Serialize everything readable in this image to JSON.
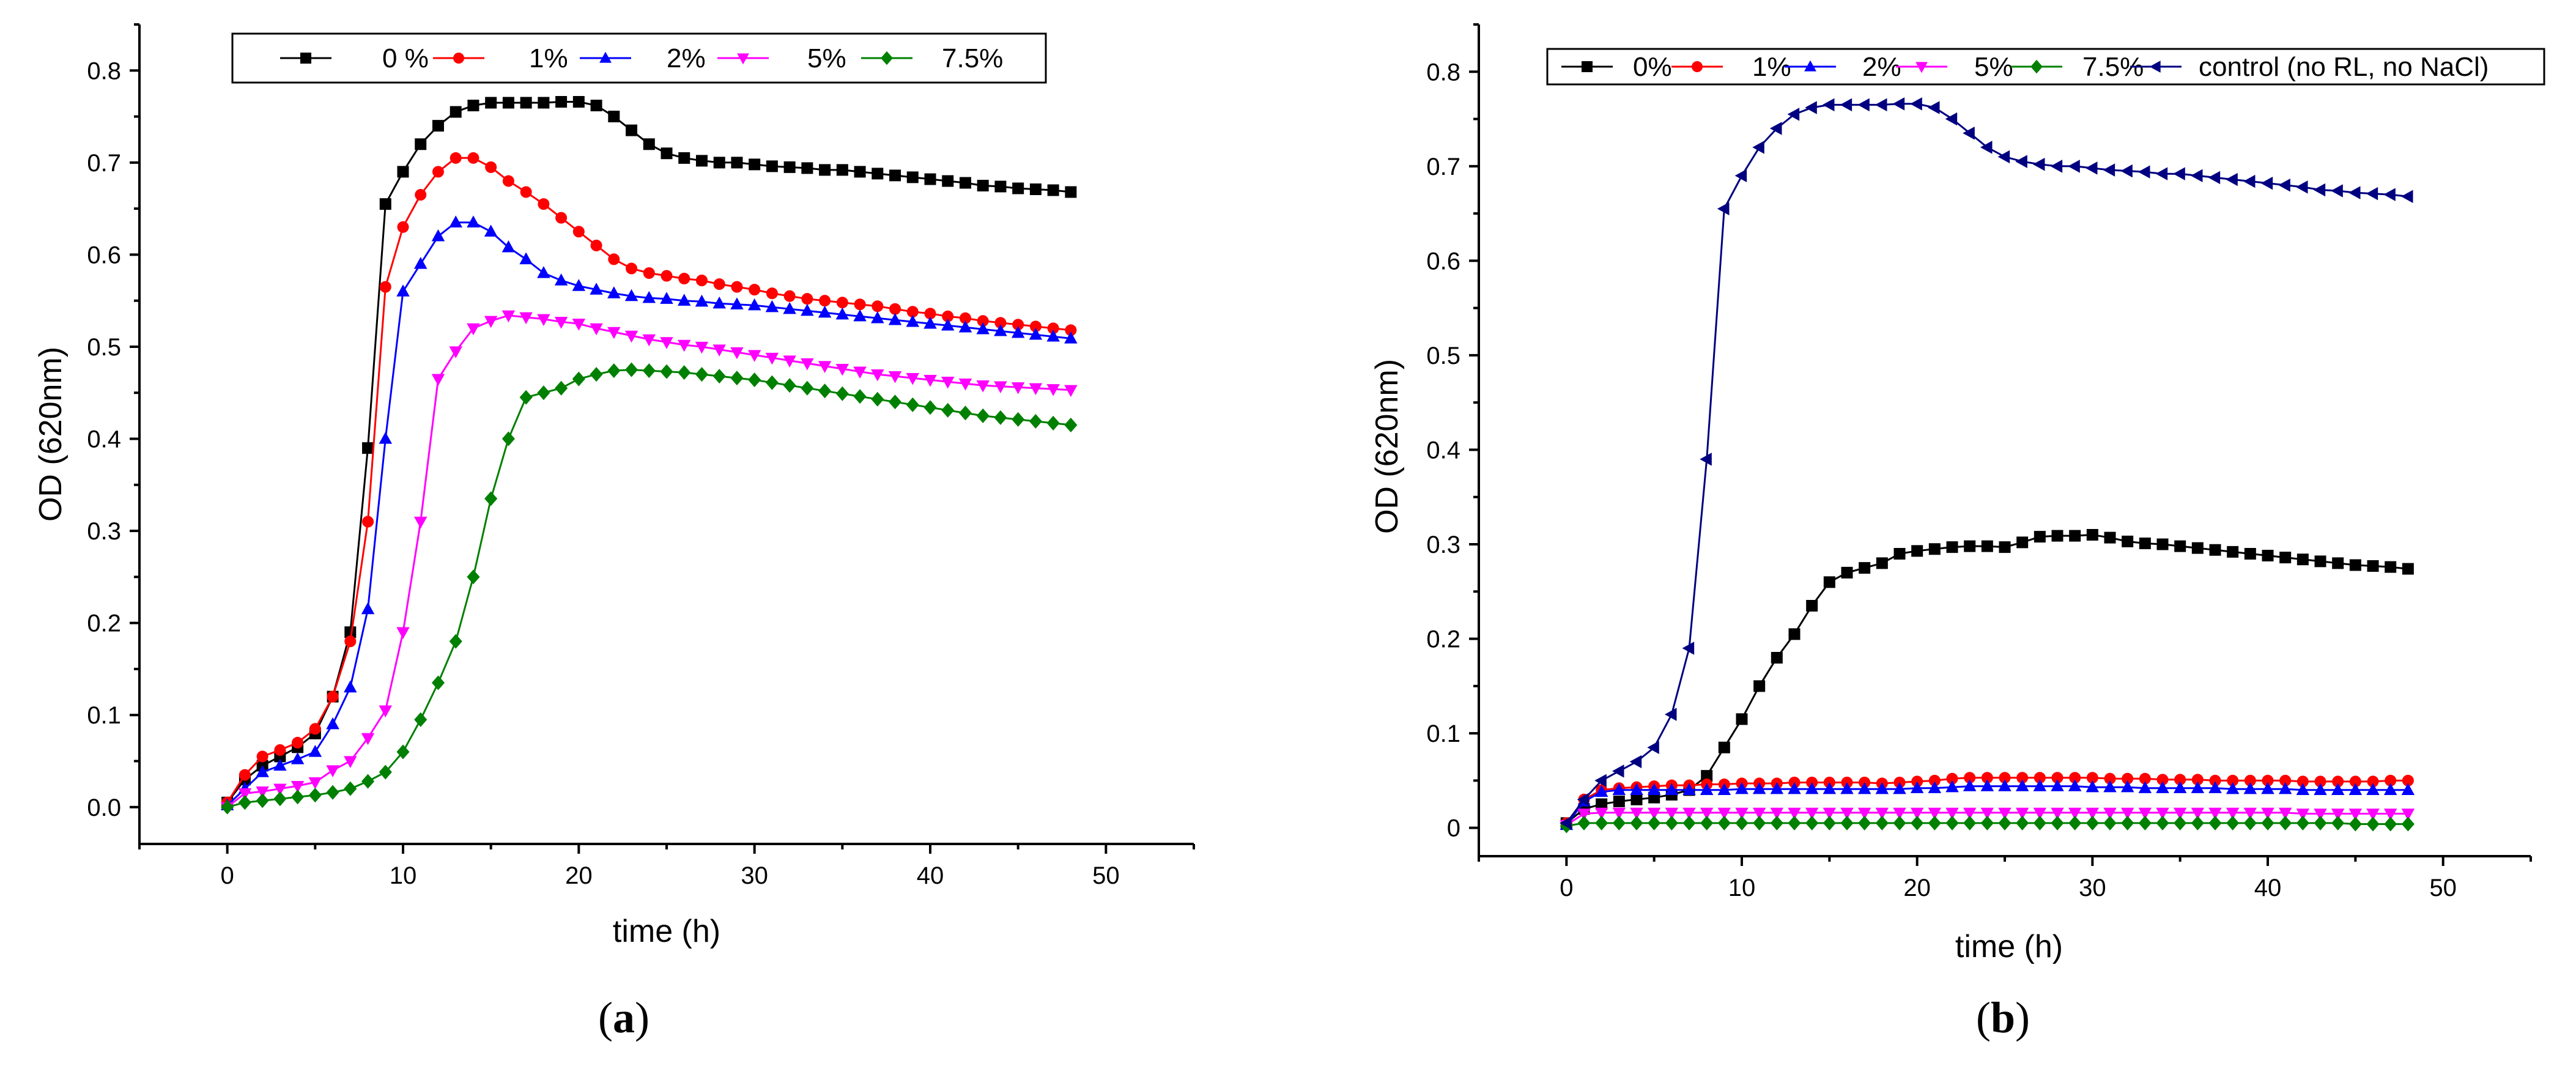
{
  "chart_data": [
    {
      "type": "line",
      "panel_label": "a",
      "xlabel": "time (h)",
      "ylabel": "OD (620nm)",
      "xlim": [
        -5,
        55
      ],
      "ylim": [
        -0.04,
        0.85
      ],
      "xticks": [
        "0",
        "10",
        "20",
        "30",
        "40",
        "50"
      ],
      "xtick_values": [
        0,
        10,
        20,
        30,
        40,
        50
      ],
      "yticks": [
        "0.0",
        "0.1",
        "0.2",
        "0.3",
        "0.4",
        "0.5",
        "0.6",
        "0.7",
        "0.8"
      ],
      "ytick_values": [
        0,
        0.1,
        0.2,
        0.3,
        0.4,
        0.5,
        0.6,
        0.7,
        0.8
      ],
      "legend_position": "top",
      "x": [
        0,
        1,
        2,
        3,
        4,
        5,
        6,
        7,
        8,
        9,
        10,
        11,
        12,
        13,
        14,
        15,
        16,
        17,
        18,
        19,
        20,
        21,
        22,
        23,
        24,
        25,
        26,
        27,
        28,
        29,
        30,
        31,
        32,
        33,
        34,
        35,
        36,
        37,
        38,
        39,
        40,
        41,
        42,
        43,
        44,
        45,
        46,
        47,
        48
      ],
      "series": [
        {
          "name": "0 %",
          "color": "#000000",
          "marker": "square",
          "values": [
            0.005,
            0.03,
            0.045,
            0.055,
            0.065,
            0.08,
            0.12,
            0.19,
            0.39,
            0.655,
            0.69,
            0.72,
            0.74,
            0.755,
            0.762,
            0.765,
            0.765,
            0.765,
            0.765,
            0.766,
            0.766,
            0.762,
            0.75,
            0.735,
            0.72,
            0.71,
            0.705,
            0.702,
            0.7,
            0.7,
            0.698,
            0.696,
            0.695,
            0.694,
            0.692,
            0.692,
            0.69,
            0.688,
            0.686,
            0.684,
            0.682,
            0.68,
            0.678,
            0.675,
            0.674,
            0.672,
            0.671,
            0.67,
            0.668
          ]
        },
        {
          "name": "1%",
          "color": "#ff0000",
          "marker": "circle",
          "values": [
            0.005,
            0.035,
            0.055,
            0.062,
            0.07,
            0.085,
            0.12,
            0.18,
            0.31,
            0.565,
            0.63,
            0.665,
            0.69,
            0.705,
            0.705,
            0.695,
            0.68,
            0.668,
            0.655,
            0.64,
            0.625,
            0.61,
            0.595,
            0.585,
            0.58,
            0.577,
            0.574,
            0.572,
            0.568,
            0.565,
            0.562,
            0.558,
            0.555,
            0.552,
            0.55,
            0.548,
            0.546,
            0.544,
            0.541,
            0.538,
            0.536,
            0.533,
            0.531,
            0.528,
            0.526,
            0.524,
            0.522,
            0.52,
            0.518
          ]
        },
        {
          "name": "2%",
          "color": "#0000ff",
          "marker": "triangle-up",
          "values": [
            0.002,
            0.02,
            0.038,
            0.045,
            0.052,
            0.06,
            0.09,
            0.13,
            0.215,
            0.4,
            0.56,
            0.59,
            0.62,
            0.635,
            0.635,
            0.625,
            0.608,
            0.595,
            0.58,
            0.572,
            0.566,
            0.562,
            0.558,
            0.555,
            0.553,
            0.552,
            0.55,
            0.549,
            0.547,
            0.546,
            0.545,
            0.543,
            0.541,
            0.539,
            0.537,
            0.535,
            0.533,
            0.531,
            0.529,
            0.527,
            0.525,
            0.523,
            0.521,
            0.519,
            0.517,
            0.515,
            0.513,
            0.511,
            0.509
          ]
        },
        {
          "name": "5%",
          "color": "#ff00ff",
          "marker": "triangle-down",
          "values": [
            0.0,
            0.015,
            0.017,
            0.02,
            0.023,
            0.027,
            0.04,
            0.05,
            0.075,
            0.105,
            0.19,
            0.31,
            0.465,
            0.495,
            0.52,
            0.528,
            0.534,
            0.532,
            0.53,
            0.527,
            0.525,
            0.52,
            0.516,
            0.512,
            0.508,
            0.505,
            0.502,
            0.5,
            0.497,
            0.494,
            0.491,
            0.488,
            0.485,
            0.482,
            0.479,
            0.476,
            0.473,
            0.47,
            0.468,
            0.466,
            0.464,
            0.462,
            0.46,
            0.458,
            0.457,
            0.456,
            0.455,
            0.454,
            0.453
          ]
        },
        {
          "name": "7.5%",
          "color": "#008000",
          "marker": "diamond",
          "values": [
            0.0,
            0.005,
            0.007,
            0.009,
            0.011,
            0.013,
            0.016,
            0.02,
            0.028,
            0.038,
            0.06,
            0.095,
            0.135,
            0.18,
            0.25,
            0.335,
            0.4,
            0.445,
            0.45,
            0.455,
            0.465,
            0.47,
            0.474,
            0.475,
            0.474,
            0.473,
            0.472,
            0.47,
            0.468,
            0.466,
            0.464,
            0.461,
            0.458,
            0.455,
            0.452,
            0.449,
            0.446,
            0.443,
            0.44,
            0.437,
            0.434,
            0.431,
            0.428,
            0.425,
            0.423,
            0.421,
            0.419,
            0.417,
            0.415
          ]
        }
      ]
    },
    {
      "type": "line",
      "panel_label": "b",
      "xlabel": "time (h)",
      "ylabel": "OD (620nm)",
      "xlim": [
        -5,
        55
      ],
      "ylim": [
        -0.03,
        0.85
      ],
      "xticks": [
        "0",
        "10",
        "20",
        "30",
        "40",
        "50"
      ],
      "xtick_values": [
        0,
        10,
        20,
        30,
        40,
        50
      ],
      "yticks": [
        "0",
        "0.1",
        "0.2",
        "0.3",
        "0.4",
        "0.5",
        "0.6",
        "0.7",
        "0.8"
      ],
      "ytick_values": [
        0,
        0.1,
        0.2,
        0.3,
        0.4,
        0.5,
        0.6,
        0.7,
        0.8
      ],
      "legend_position": "top",
      "x": [
        0,
        1,
        2,
        3,
        4,
        5,
        6,
        7,
        8,
        9,
        10,
        11,
        12,
        13,
        14,
        15,
        16,
        17,
        18,
        19,
        20,
        21,
        22,
        23,
        24,
        25,
        26,
        27,
        28,
        29,
        30,
        31,
        32,
        33,
        34,
        35,
        36,
        37,
        38,
        39,
        40,
        41,
        42,
        43,
        44,
        45,
        46,
        47,
        48
      ],
      "series": [
        {
          "name": "0%",
          "color": "#000000",
          "marker": "square",
          "values": [
            0.005,
            0.02,
            0.025,
            0.028,
            0.03,
            0.032,
            0.035,
            0.04,
            0.055,
            0.085,
            0.115,
            0.15,
            0.18,
            0.205,
            0.235,
            0.26,
            0.27,
            0.275,
            0.28,
            0.29,
            0.293,
            0.295,
            0.297,
            0.298,
            0.298,
            0.297,
            0.302,
            0.308,
            0.309,
            0.309,
            0.31,
            0.307,
            0.303,
            0.301,
            0.3,
            0.298,
            0.296,
            0.294,
            0.292,
            0.29,
            0.288,
            0.286,
            0.284,
            0.282,
            0.28,
            0.278,
            0.277,
            0.276,
            0.274
          ]
        },
        {
          "name": "1%",
          "color": "#ff0000",
          "marker": "circle",
          "values": [
            0.005,
            0.03,
            0.04,
            0.042,
            0.043,
            0.044,
            0.045,
            0.045,
            0.046,
            0.046,
            0.047,
            0.047,
            0.047,
            0.048,
            0.048,
            0.048,
            0.048,
            0.048,
            0.047,
            0.048,
            0.049,
            0.05,
            0.052,
            0.053,
            0.053,
            0.053,
            0.053,
            0.053,
            0.053,
            0.053,
            0.053,
            0.052,
            0.052,
            0.052,
            0.051,
            0.051,
            0.051,
            0.05,
            0.05,
            0.05,
            0.05,
            0.05,
            0.049,
            0.049,
            0.049,
            0.049,
            0.049,
            0.05,
            0.05
          ]
        },
        {
          "name": "2%",
          "color": "#0000ff",
          "marker": "triangle-up",
          "values": [
            0.003,
            0.028,
            0.038,
            0.04,
            0.04,
            0.04,
            0.04,
            0.04,
            0.04,
            0.04,
            0.041,
            0.041,
            0.041,
            0.041,
            0.041,
            0.041,
            0.041,
            0.041,
            0.041,
            0.041,
            0.042,
            0.042,
            0.043,
            0.044,
            0.044,
            0.044,
            0.044,
            0.044,
            0.044,
            0.044,
            0.043,
            0.043,
            0.043,
            0.042,
            0.042,
            0.042,
            0.042,
            0.042,
            0.041,
            0.041,
            0.041,
            0.041,
            0.04,
            0.04,
            0.04,
            0.04,
            0.04,
            0.04,
            0.04
          ]
        },
        {
          "name": "5%",
          "color": "#ff00ff",
          "marker": "triangle-down",
          "values": [
            0.003,
            0.015,
            0.016,
            0.016,
            0.016,
            0.016,
            0.016,
            0.016,
            0.016,
            0.016,
            0.016,
            0.016,
            0.016,
            0.016,
            0.016,
            0.016,
            0.016,
            0.016,
            0.016,
            0.016,
            0.016,
            0.016,
            0.016,
            0.016,
            0.016,
            0.016,
            0.016,
            0.016,
            0.016,
            0.016,
            0.016,
            0.016,
            0.016,
            0.016,
            0.016,
            0.016,
            0.016,
            0.016,
            0.016,
            0.016,
            0.016,
            0.016,
            0.015,
            0.015,
            0.015,
            0.015,
            0.015,
            0.015,
            0.015
          ]
        },
        {
          "name": "7.5%",
          "color": "#008000",
          "marker": "diamond",
          "values": [
            0.002,
            0.005,
            0.005,
            0.005,
            0.005,
            0.005,
            0.005,
            0.005,
            0.005,
            0.005,
            0.005,
            0.005,
            0.005,
            0.005,
            0.005,
            0.005,
            0.005,
            0.005,
            0.005,
            0.005,
            0.005,
            0.005,
            0.005,
            0.005,
            0.005,
            0.005,
            0.005,
            0.005,
            0.005,
            0.005,
            0.005,
            0.005,
            0.005,
            0.005,
            0.005,
            0.005,
            0.005,
            0.005,
            0.005,
            0.005,
            0.005,
            0.005,
            0.005,
            0.005,
            0.005,
            0.004,
            0.004,
            0.004,
            0.004
          ]
        },
        {
          "name": "control (no RL, no NaCl)",
          "color": "#000080",
          "marker": "triangle-left",
          "values": [
            0.005,
            0.03,
            0.05,
            0.06,
            0.07,
            0.085,
            0.12,
            0.19,
            0.39,
            0.655,
            0.69,
            0.72,
            0.74,
            0.755,
            0.762,
            0.765,
            0.765,
            0.765,
            0.765,
            0.766,
            0.766,
            0.762,
            0.75,
            0.735,
            0.72,
            0.71,
            0.705,
            0.702,
            0.7,
            0.7,
            0.698,
            0.696,
            0.695,
            0.694,
            0.692,
            0.692,
            0.69,
            0.688,
            0.686,
            0.684,
            0.682,
            0.68,
            0.678,
            0.675,
            0.674,
            0.672,
            0.671,
            0.67,
            0.668
          ]
        }
      ]
    }
  ]
}
